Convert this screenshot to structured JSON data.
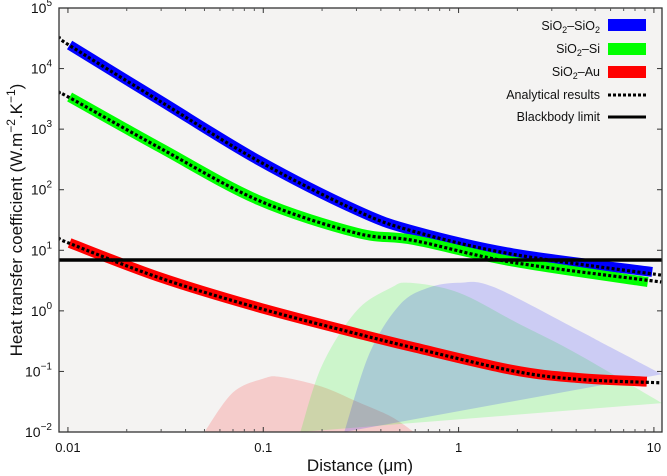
{
  "chart_data": {
    "type": "line",
    "title": "",
    "xlabel": "Distance (μm)",
    "ylabel": "Heat transfer coefficient (W.m⁻².K⁻¹)",
    "ylabel_parts": {
      "pre": "Heat transfer coefficient (W.m",
      "e1": "−2",
      "mid": ".K",
      "e2": "−1",
      "post": ")"
    },
    "x_scale": "log",
    "y_scale": "log",
    "xlim": [
      0.009,
      11
    ],
    "ylim": [
      0.01,
      100000
    ],
    "grid": false,
    "legend_position": "top-right",
    "background": "#f4f3f2",
    "x_ticks": [
      {
        "value": 0.01,
        "label": "0.01"
      },
      {
        "value": 0.1,
        "label": "0.1"
      },
      {
        "value": 1,
        "label": "1"
      },
      {
        "value": 10,
        "label": "10"
      }
    ],
    "y_ticks": [
      {
        "value": 0.01,
        "base": "10",
        "exp": "−2"
      },
      {
        "value": 0.1,
        "base": "10",
        "exp": "−1"
      },
      {
        "value": 1,
        "base": "10",
        "exp": "0"
      },
      {
        "value": 10,
        "base": "10",
        "exp": "1"
      },
      {
        "value": 100,
        "base": "10",
        "exp": "2"
      },
      {
        "value": 1000,
        "base": "10",
        "exp": "3"
      },
      {
        "value": 10000,
        "base": "10",
        "exp": "4"
      },
      {
        "value": 100000,
        "base": "10",
        "exp": "5"
      }
    ],
    "series": [
      {
        "name": "SiO2–SiO2",
        "legend": {
          "a": "SiO",
          "s1": "2",
          "b": "–SiO",
          "s2": "2"
        },
        "color": "#0000ff",
        "points": [
          [
            0.0102,
            24500
          ],
          [
            0.0295,
            3000
          ],
          [
            0.094,
            310
          ],
          [
            0.3,
            46
          ],
          [
            0.59,
            21
          ],
          [
            1.9,
            8.9
          ],
          [
            9.8,
            4.4
          ]
        ]
      },
      {
        "name": "SiO2–Si",
        "legend": {
          "a": "SiO",
          "s1": "2",
          "b": "–Si",
          "s2": ""
        },
        "color": "#00ff00",
        "points": [
          [
            0.0102,
            3400
          ],
          [
            0.0295,
            500
          ],
          [
            0.094,
            68
          ],
          [
            0.3,
            19.5
          ],
          [
            0.59,
            14.8
          ],
          [
            1.9,
            6.5
          ],
          [
            9.3,
            3.0
          ]
        ]
      },
      {
        "name": "SiO2–Au",
        "legend": {
          "a": "SiO",
          "s1": "2",
          "b": "–Au",
          "s2": ""
        },
        "color": "#ff0000",
        "points": [
          [
            0.0102,
            13.2
          ],
          [
            0.0295,
            3.6
          ],
          [
            0.094,
            1.15
          ],
          [
            0.3,
            0.43
          ],
          [
            0.59,
            0.25
          ],
          [
            1.9,
            0.105
          ],
          [
            4.1,
            0.078
          ],
          [
            9.2,
            0.068
          ]
        ]
      }
    ],
    "analytical": {
      "name": "Analytical results",
      "color": "#000000",
      "curves": [
        [
          [
            0.009,
            33000
          ],
          [
            0.0102,
            24000
          ],
          [
            0.0295,
            2900
          ],
          [
            0.094,
            300
          ],
          [
            0.3,
            45
          ],
          [
            0.59,
            20.5
          ],
          [
            1.9,
            8.6
          ],
          [
            10.9,
            3.9
          ]
        ],
        [
          [
            0.009,
            4000
          ],
          [
            0.0102,
            3300
          ],
          [
            0.0295,
            490
          ],
          [
            0.094,
            67
          ],
          [
            0.3,
            19.2
          ],
          [
            0.59,
            14.5
          ],
          [
            1.9,
            6.3
          ],
          [
            10.9,
            3.0
          ]
        ],
        [
          [
            0.009,
            15.8
          ],
          [
            0.0102,
            13
          ],
          [
            0.0295,
            3.5
          ],
          [
            0.094,
            1.12
          ],
          [
            0.3,
            0.42
          ],
          [
            0.59,
            0.245
          ],
          [
            1.9,
            0.102
          ],
          [
            4.1,
            0.074
          ],
          [
            10.9,
            0.065
          ]
        ]
      ]
    },
    "blackbody": {
      "name": "Blackbody limit",
      "value": 6.9,
      "color": "#000000"
    },
    "shaded_regions": [
      {
        "color": "#ff0000",
        "points": [
          [
            0.05,
            0.01
          ],
          [
            0.07,
            0.045
          ],
          [
            0.1,
            0.076
          ],
          [
            0.123,
            0.081
          ],
          [
            0.2,
            0.056
          ],
          [
            0.3,
            0.032
          ],
          [
            0.45,
            0.018
          ],
          [
            0.59,
            0.01
          ]
        ]
      },
      {
        "color": "#00ff00",
        "points": [
          [
            0.155,
            0.01
          ],
          [
            0.2,
            0.126
          ],
          [
            0.3,
            1.0
          ],
          [
            0.45,
            2.4
          ],
          [
            0.56,
            2.9
          ],
          [
            1.0,
            2.0
          ],
          [
            2.0,
            0.63
          ],
          [
            4.0,
            0.2
          ],
          [
            11,
            0.03
          ]
        ]
      },
      {
        "color": "#0000ff",
        "points": [
          [
            0.26,
            0.01
          ],
          [
            0.35,
            0.2
          ],
          [
            0.5,
            1.26
          ],
          [
            0.7,
            2.4
          ],
          [
            1.0,
            2.9
          ],
          [
            1.5,
            2.5
          ],
          [
            4.0,
            0.5
          ],
          [
            6.0,
            0.25
          ],
          [
            11,
            0.09
          ]
        ]
      }
    ]
  }
}
